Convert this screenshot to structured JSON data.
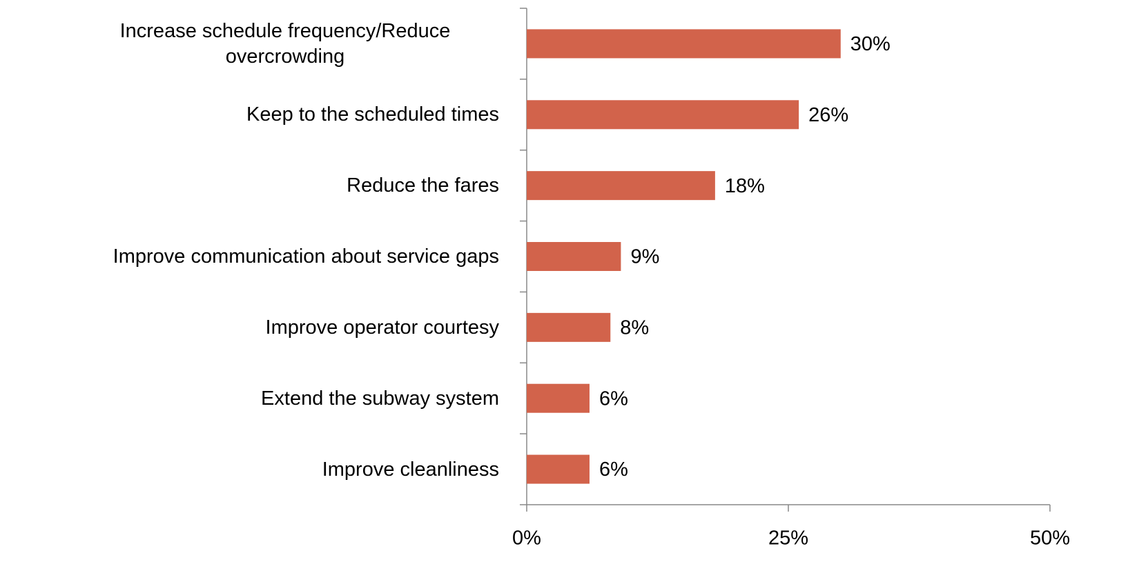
{
  "chart_data": {
    "type": "bar",
    "orientation": "horizontal",
    "categories": [
      "Increase schedule frequency/Reduce overcrowding",
      "Keep to the scheduled times",
      "Reduce the fares",
      "Improve communication about service gaps",
      "Improve operator courtesy",
      "Extend the subway system",
      "Improve cleanliness"
    ],
    "values": [
      30,
      26,
      18,
      9,
      8,
      6,
      6
    ],
    "value_labels": [
      "30%",
      "26%",
      "18%",
      "9%",
      "8%",
      "6%",
      "6%"
    ],
    "color": "#d2634b",
    "xlim": [
      0,
      50
    ],
    "xticks": [
      {
        "value": 0,
        "label": "0%"
      },
      {
        "value": 25,
        "label": "25%"
      },
      {
        "value": 50,
        "label": "50%"
      }
    ]
  }
}
